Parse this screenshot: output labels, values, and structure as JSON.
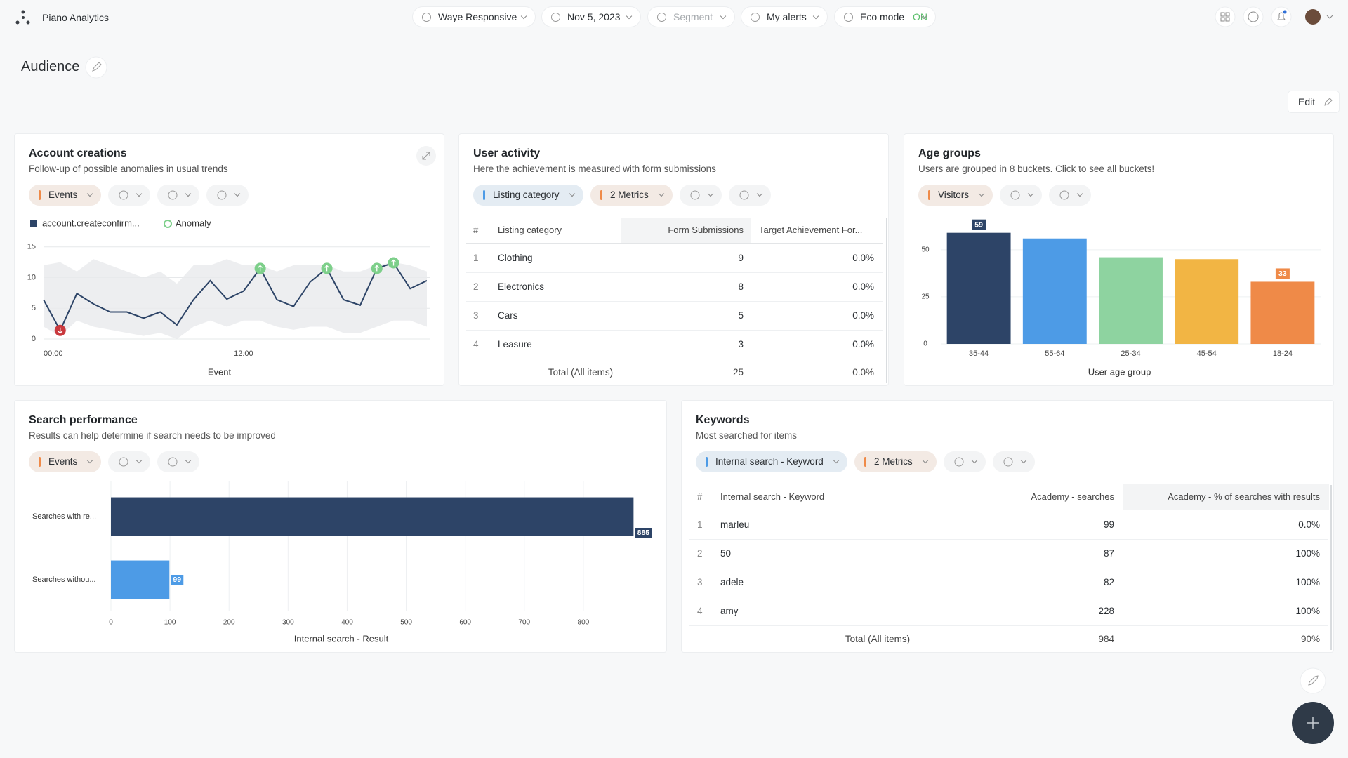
{
  "header": {
    "app_name": "Piano Analytics",
    "site": "Waye Responsive",
    "date": "Nov 5, 2023",
    "segment": "Segment",
    "alerts": "My alerts",
    "eco_mode": "Eco mode",
    "eco_state": "ON"
  },
  "page": {
    "title": "Audience",
    "edit": "Edit"
  },
  "cards": [
    {
      "title": "Account creations",
      "subtitle": "Follow-up of possible anomalies in usual trends",
      "controls": [
        {
          "label": "Events",
          "color": "#ef8a48"
        }
      ]
    },
    {
      "title": "User activity",
      "subtitle": "Here the achievement is measured with form submissions",
      "controls": [
        {
          "label": "Listing category",
          "color": "#4d9be6"
        },
        {
          "label": "2 Metrics",
          "color": "#ef8a48"
        }
      ]
    },
    {
      "title": "Age groups",
      "subtitle": "Users are grouped in 8 buckets. Click to see all buckets!",
      "controls": [
        {
          "label": "Visitors",
          "color": "#ef8a48"
        }
      ]
    },
    {
      "title": "Search performance",
      "subtitle": "Results can help determine if search needs to be improved",
      "controls": [
        {
          "label": "Events",
          "color": "#ef8a48"
        }
      ]
    },
    {
      "title": "Keywords",
      "subtitle": "Most searched for items",
      "controls": [
        {
          "label": "Internal search - Keyword",
          "color": "#4d9be6"
        },
        {
          "label": "2 Metrics",
          "color": "#ef8a48"
        }
      ]
    }
  ],
  "tables": [
    {
      "columns": [
        "#",
        "Listing category",
        "Form Submissions",
        "Target Achievement For..."
      ],
      "rows": [
        [
          1,
          "Clothing",
          9,
          "0.0%"
        ],
        [
          2,
          "Electronics",
          8,
          "0.0%"
        ],
        [
          3,
          "Cars",
          5,
          "0.0%"
        ],
        [
          4,
          "Leasure",
          3,
          "0.0%"
        ]
      ],
      "total": [
        "Total (All items)",
        25,
        "0.0%"
      ]
    },
    {
      "columns": [
        "#",
        "Internal search - Keyword",
        "Academy - searches",
        "Academy - % of searches with results"
      ],
      "rows": [
        [
          1,
          "marleu",
          99,
          "0.0%"
        ],
        [
          2,
          "50",
          87,
          "100%"
        ],
        [
          3,
          "adele",
          82,
          "100%"
        ],
        [
          4,
          "amy",
          228,
          "100%"
        ]
      ],
      "total": [
        "Total (All items)",
        984,
        "90%"
      ]
    }
  ],
  "chart_data": [
    {
      "type": "line",
      "x_label": "Event",
      "categories": [
        "00:00",
        null,
        null,
        null,
        null,
        null,
        null,
        null,
        null,
        null,
        null,
        null,
        "12:00",
        null,
        null,
        null,
        null,
        null,
        null,
        null,
        null,
        null,
        null,
        null
      ],
      "series": [
        {
          "name": "account.createconfirm...",
          "color": "#2d4467",
          "values": [
            6.4,
            1.4,
            7.4,
            5.7,
            4.4,
            4.4,
            3.4,
            4.4,
            2.3,
            6.4,
            9.5,
            6.5,
            7.8,
            11.5,
            6.4,
            5.3,
            9.3,
            11.5,
            6.4,
            5.5,
            11.5,
            12.4,
            8.2,
            9.5
          ]
        }
      ],
      "range_high": [
        12,
        12.5,
        11,
        13,
        12,
        11,
        10,
        11,
        9,
        12,
        12,
        13,
        12,
        12,
        11,
        12,
        12,
        12,
        11,
        11,
        12,
        12.5,
        12,
        11
      ],
      "range_low": [
        2,
        0.5,
        3,
        2,
        1.5,
        1,
        0.5,
        1,
        0,
        2,
        3,
        2,
        3,
        3,
        2,
        1.5,
        2,
        2,
        1,
        1,
        2,
        3,
        3,
        2
      ],
      "anomaly_label": "Anomaly",
      "anomaly": [
        null,
        "down",
        null,
        null,
        null,
        null,
        null,
        null,
        null,
        null,
        null,
        null,
        null,
        "up",
        null,
        null,
        null,
        "up",
        null,
        null,
        "up",
        "up",
        null,
        null
      ],
      "ylim": [
        0,
        16
      ],
      "yticks": [
        0,
        5,
        10,
        15
      ],
      "grid": true
    },
    {
      "type": "bar",
      "x_label": "User age group",
      "categories": [
        "35-44",
        "55-64",
        "25-34",
        "45-54",
        "18-24"
      ],
      "values": [
        59,
        56,
        46,
        45,
        33
      ],
      "colors": [
        "#2d4467",
        "#4d9be6",
        "#8ed3a0",
        "#f2b544",
        "#ef8a48"
      ],
      "ylim": [
        0,
        60
      ],
      "yticks": [
        0,
        25,
        50
      ],
      "grid": true
    },
    {
      "type": "hbar",
      "x_label": "Internal search - Result",
      "categories": [
        "Searches with re...",
        "Searches withou..."
      ],
      "values": [
        885,
        99
      ],
      "colors": [
        "#2d4467",
        "#4d9be6"
      ],
      "xlim": [
        0,
        900
      ],
      "xticks": [
        0,
        100,
        200,
        300,
        400,
        500,
        600,
        700,
        800
      ],
      "grid": true
    }
  ]
}
